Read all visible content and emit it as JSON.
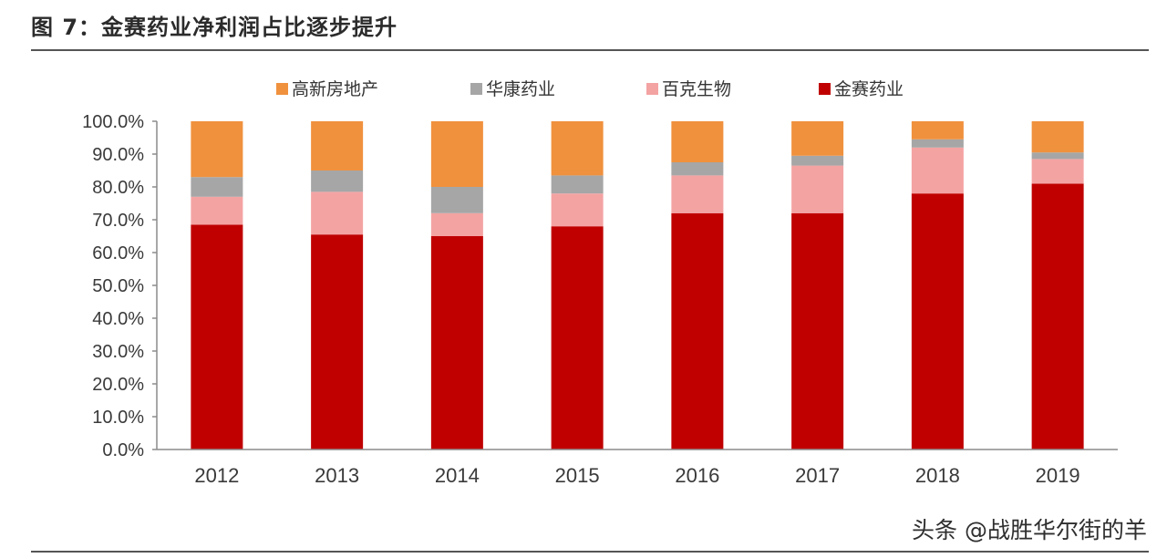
{
  "figure": {
    "title": "图 7：金赛药业净利润占比逐步提升",
    "watermark": "头条 @战胜华尔街的羊"
  },
  "chart_data": {
    "type": "bar",
    "stacked": true,
    "categories": [
      "2012",
      "2013",
      "2014",
      "2015",
      "2016",
      "2017",
      "2018",
      "2019"
    ],
    "series": [
      {
        "name": "金赛药业",
        "color": "#c00000",
        "values": [
          68.5,
          65.5,
          65.0,
          68.0,
          72.0,
          72.0,
          78.0,
          81.0
        ]
      },
      {
        "name": "百克生物",
        "color": "#f4a3a3",
        "values": [
          8.5,
          13.0,
          7.0,
          10.0,
          11.5,
          14.5,
          14.0,
          7.5
        ]
      },
      {
        "name": "华康药业",
        "color": "#a6a6a6",
        "values": [
          6.0,
          6.5,
          8.0,
          5.5,
          4.0,
          3.0,
          2.5,
          2.0
        ]
      },
      {
        "name": "高新房地产",
        "color": "#f0913e",
        "values": [
          17.0,
          15.0,
          20.0,
          16.5,
          12.5,
          10.5,
          5.5,
          9.5
        ]
      }
    ],
    "legend_order": [
      "高新房地产",
      "华康药业",
      "百克生物",
      "金赛药业"
    ],
    "yticks": [
      "0.0%",
      "10.0%",
      "20.0%",
      "30.0%",
      "40.0%",
      "50.0%",
      "60.0%",
      "70.0%",
      "80.0%",
      "90.0%",
      "100.0%"
    ],
    "ylim": [
      0,
      100
    ],
    "legend_position": "top",
    "grid": false
  }
}
